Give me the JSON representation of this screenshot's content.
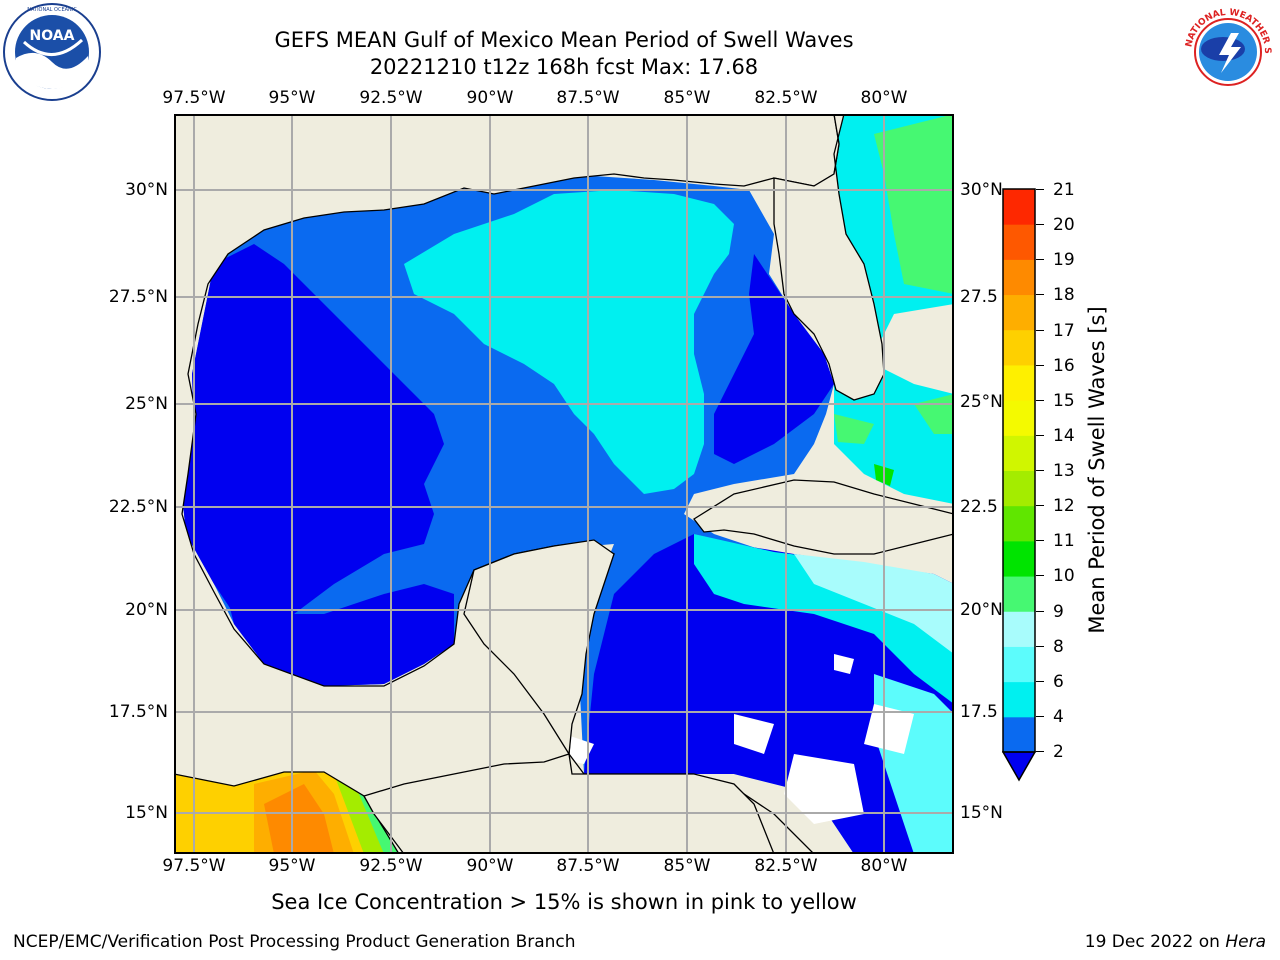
{
  "header": {
    "title_line1": "GEFS MEAN Gulf of Mexico Mean Period of Swell Waves",
    "title_line2": "20221210 t12z 168h fcst   Max: 17.68"
  },
  "logos": {
    "left": {
      "name": "NOAA",
      "ring_text": "NATIONAL OCEANIC AND ATMOSPHERIC ADMINISTRATION · U.S. DEPARTMENT OF COMMERCE"
    },
    "right": {
      "name": "NATIONAL WEATHER SERVICE"
    }
  },
  "map": {
    "lon_labels": [
      "97.5°W",
      "95°W",
      "92.5°W",
      "90°W",
      "87.5°W",
      "85°W",
      "82.5°W",
      "80°W"
    ],
    "lat_labels_left": [
      "30°N",
      "27.5°N",
      "25°N",
      "22.5°N",
      "20°N",
      "17.5°N",
      "15°N"
    ],
    "lat_labels_right": [
      "30°N",
      "27.5",
      "25°N",
      "22.5",
      "20°N",
      "17.5",
      "15°N"
    ],
    "land_color": "#efedde",
    "grid_color": "#aaaaaa"
  },
  "colorbar": {
    "label": "Mean Period of Swell Waves [s]",
    "ticks": [
      "2",
      "4",
      "6",
      "8",
      "9",
      "10",
      "11",
      "12",
      "13",
      "14",
      "15",
      "16",
      "17",
      "18",
      "19",
      "20",
      "21"
    ],
    "colors": [
      "#0a6af0",
      "#00f0f0",
      "#5cfcfc",
      "#a8fcfc",
      "#46f872",
      "#00e400",
      "#60e600",
      "#a4ec00",
      "#d0f600",
      "#f4fa00",
      "#fef000",
      "#fed000",
      "#feae00",
      "#fe8a00",
      "#fe5800",
      "#fe2800"
    ]
  },
  "note": "Sea Ice Concentration > 15% is shown in pink to yellow",
  "footer": {
    "left": "NCEP/EMC/Verification Post Processing Product Generation Branch",
    "right_prefix": "19 Dec 2022 on ",
    "right_host": "Hera"
  }
}
